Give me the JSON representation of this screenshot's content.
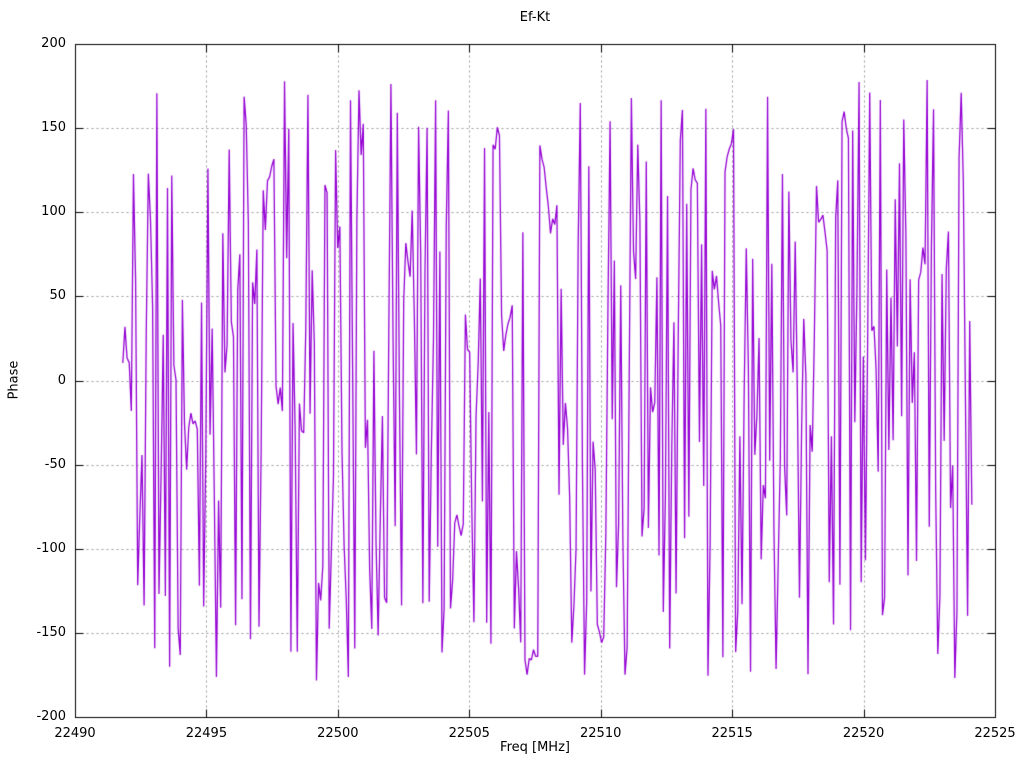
{
  "page": {
    "background": "#ffffff",
    "text_color": "#000000"
  },
  "chart_data": {
    "type": "line",
    "title": "Ef-Kt",
    "xlabel": "Freq [MHz]",
    "ylabel": "Phase",
    "xlim": [
      22490,
      22525
    ],
    "ylim": [
      -200,
      200
    ],
    "x_ticks": [
      22490,
      22495,
      22500,
      22505,
      22510,
      22515,
      22520,
      22525
    ],
    "y_ticks": [
      200,
      150,
      100,
      50,
      0,
      -50,
      -100,
      -150,
      -200
    ],
    "grid": true,
    "grid_style": "dotted",
    "grid_color": "#9b9b9b",
    "axis_color": "#000000",
    "legend": "none",
    "series": [
      {
        "name": "Ef-Kt",
        "color": "#9400D3",
        "line_width": 1.3,
        "x_start": 22491.8,
        "x_end": 22524.1,
        "n_points": 400,
        "y_min": -180,
        "y_max": 180,
        "appearance": "wrapped interferometric phase noise; values jump pseudo-randomly across the full -180..180 range with occasional short slowly-varying runs",
        "seed": 11,
        "calm_run_probability": 0.06,
        "calm_run_length_max": 5,
        "calm_step_max": 16
      }
    ]
  }
}
